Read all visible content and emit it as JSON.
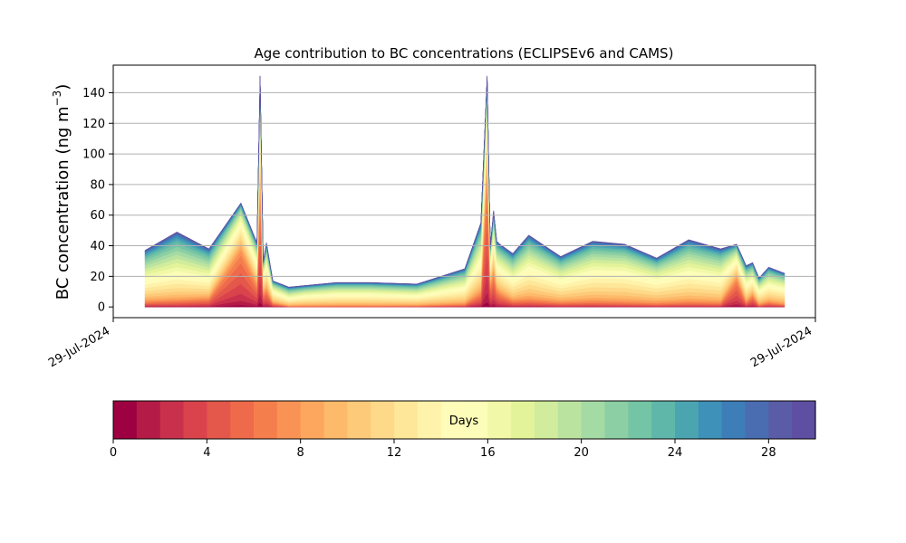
{
  "chart_data": {
    "type": "area",
    "stacked": true,
    "title": "Age contribution to BC concentrations (ECLIPSEv6 and CAMS)",
    "ylabel": "BC concentration (ng m",
    "ylabel_superscript": "−3",
    "ylabel_close": ")",
    "xlabel": "",
    "x_tick_labels": [
      "29-Jul-2024",
      "29-Jul-2024"
    ],
    "yticks": [
      0,
      20,
      40,
      60,
      80,
      100,
      120,
      140
    ],
    "ylim": [
      -7,
      158
    ],
    "grid": "horizontal",
    "x": [
      0,
      10,
      20,
      30,
      35,
      36,
      37,
      38,
      40,
      45,
      50,
      60,
      70,
      85,
      100,
      105,
      107,
      108,
      109,
      110,
      111,
      115,
      120,
      130,
      140,
      150,
      160,
      170,
      180,
      185,
      188,
      190,
      192,
      195,
      200
    ],
    "totals": [
      37,
      49,
      38,
      68,
      42,
      151,
      30,
      42,
      17,
      13,
      14,
      16,
      16,
      15,
      25,
      55,
      151,
      40,
      63,
      43,
      41,
      35,
      47,
      33,
      43,
      41,
      32,
      44,
      38,
      41,
      27,
      29,
      19,
      26,
      22
    ],
    "shapes": {
      "young": [
        0.08,
        0.07,
        0.13,
        0.55,
        0.33,
        0.55,
        0.28,
        0.25,
        0.12,
        0.02,
        0.02,
        0.02,
        0.02,
        0.03,
        0.05,
        0.15,
        0.6,
        0.35,
        0.35,
        0.25,
        0.2,
        0.1,
        0.08,
        0.07,
        0.06,
        0.05,
        0.05,
        0.05,
        0.05,
        0.45,
        0.1,
        0.25,
        0.05,
        0.1,
        0.05
      ],
      "mid": [
        0.42,
        0.38,
        0.38,
        0.3,
        0.42,
        0.35,
        0.45,
        0.45,
        0.55,
        0.45,
        0.55,
        0.55,
        0.55,
        0.5,
        0.5,
        0.45,
        0.3,
        0.4,
        0.4,
        0.4,
        0.45,
        0.45,
        0.5,
        0.5,
        0.52,
        0.55,
        0.55,
        0.5,
        0.5,
        0.35,
        0.5,
        0.4,
        0.55,
        0.5,
        0.55
      ],
      "old": [
        0.5,
        0.55,
        0.49,
        0.15,
        0.25,
        0.1,
        0.27,
        0.3,
        0.33,
        0.53,
        0.43,
        0.43,
        0.43,
        0.47,
        0.45,
        0.4,
        0.1,
        0.25,
        0.25,
        0.35,
        0.35,
        0.45,
        0.42,
        0.43,
        0.42,
        0.4,
        0.4,
        0.45,
        0.45,
        0.2,
        0.4,
        0.35,
        0.4,
        0.4,
        0.4
      ]
    },
    "colorbar": {
      "label": "Days",
      "range": [
        0,
        30
      ],
      "ticks": [
        0,
        4,
        8,
        12,
        16,
        20,
        24,
        28
      ],
      "colors": [
        "#9e0142",
        "#b41b47",
        "#c9304c",
        "#da434c",
        "#e4574b",
        "#ee6a4a",
        "#f57e4d",
        "#f99355",
        "#fca75d",
        "#fdba6b",
        "#fdca79",
        "#fed989",
        "#fee799",
        "#fff2aa",
        "#fffbb8",
        "#fbfdb8",
        "#f1f9a8",
        "#e3f399",
        "#d0ec9c",
        "#bae3a0",
        "#a4daa4",
        "#8ccfa4",
        "#74c5a5",
        "#5fb7aa",
        "#4ba5b1",
        "#3e91b8",
        "#3d7eb8",
        "#4a6cb0",
        "#5a5ca7",
        "#5e4fa2"
      ]
    }
  }
}
